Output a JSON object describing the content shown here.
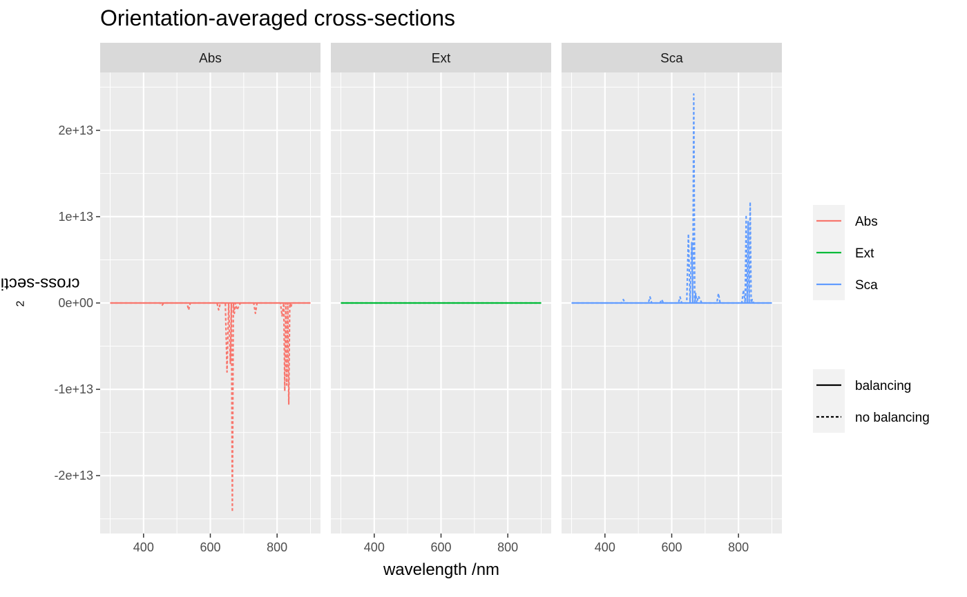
{
  "chart_data": {
    "type": "line",
    "title": "Orientation-averaged cross-sections",
    "xlabel": "wavelength /nm",
    "ylabel": "cross-section /nm",
    "ylabel_superscript": "2",
    "xlim": [
      270,
      930
    ],
    "ylim": [
      -26700000000000.0,
      26700000000000.0
    ],
    "x_ticks": [
      400,
      600,
      800
    ],
    "x_tick_labels": [
      "400",
      "600",
      "800"
    ],
    "y_ticks": [
      -20000000000000.0,
      -10000000000000.0,
      0,
      10000000000000.0,
      20000000000000.0
    ],
    "y_tick_labels": [
      "-2e+13",
      "-1e+13",
      "0e+00",
      "1e+13",
      "2e+13"
    ],
    "grid": true,
    "facets": [
      "Abs",
      "Ext",
      "Sca"
    ],
    "legend_position": "right",
    "legend_colour": {
      "entries": [
        {
          "label": "Abs",
          "color": "#F8766D"
        },
        {
          "label": "Ext",
          "color": "#00BA38"
        },
        {
          "label": "Sca",
          "color": "#619CFF"
        }
      ]
    },
    "legend_linetype": {
      "entries": [
        {
          "label": "balancing",
          "dash": "solid"
        },
        {
          "label": "no balancing",
          "dash": "dashed"
        }
      ]
    },
    "series": [
      {
        "facet": "Abs",
        "color": "#F8766D",
        "linetype": "balancing",
        "x": [
          300,
          900
        ],
        "y": [
          0,
          0
        ]
      },
      {
        "facet": "Abs",
        "color": "#F8766D",
        "linetype": "no balancing",
        "x": [
          300,
          450,
          455,
          460,
          530,
          535,
          540,
          620,
          625,
          630,
          645,
          650,
          655,
          660,
          663,
          666,
          669,
          672,
          675,
          680,
          690,
          700,
          730,
          735,
          740,
          810,
          815,
          820,
          823,
          826,
          829,
          832,
          835,
          838,
          841,
          845,
          900
        ],
        "y": [
          0,
          0,
          -300000000000.0,
          0,
          0,
          -800000000000.0,
          0,
          0,
          -800000000000.0,
          0,
          0,
          -8000000000000.0,
          0,
          -7000000000000.0,
          0,
          -24200000000000.0,
          0,
          -1200000000000.0,
          0,
          -800000000000.0,
          0,
          0,
          0,
          -1200000000000.0,
          0,
          0,
          -1500000000000.0,
          0,
          -10200000000000.0,
          0,
          -9500000000000.0,
          0,
          -11700000000000.0,
          0,
          -500000000000.0,
          0,
          0
        ]
      },
      {
        "facet": "Ext",
        "color": "#00BA38",
        "linetype": "balancing",
        "x": [
          300,
          900
        ],
        "y": [
          0,
          0
        ]
      },
      {
        "facet": "Ext",
        "color": "#00BA38",
        "linetype": "no balancing",
        "x": [
          300,
          900
        ],
        "y": [
          0,
          0
        ]
      },
      {
        "facet": "Sca",
        "color": "#619CFF",
        "linetype": "balancing",
        "x": [
          300,
          900
        ],
        "y": [
          0,
          0
        ]
      },
      {
        "facet": "Sca",
        "color": "#619CFF",
        "linetype": "no balancing",
        "x": [
          300,
          450,
          455,
          460,
          530,
          535,
          540,
          565,
          570,
          575,
          620,
          625,
          630,
          645,
          650,
          655,
          660,
          663,
          666,
          669,
          672,
          675,
          680,
          690,
          700,
          735,
          740,
          745,
          810,
          815,
          820,
          823,
          826,
          829,
          832,
          835,
          838,
          841,
          845,
          900
        ],
        "y": [
          0,
          0,
          400000000000.0,
          0,
          0,
          700000000000.0,
          0,
          0,
          400000000000.0,
          0,
          0,
          700000000000.0,
          0,
          0,
          8000000000000.0,
          0,
          7000000000000.0,
          0,
          24200000000000.0,
          0,
          1100000000000.0,
          0,
          800000000000.0,
          0,
          0,
          0,
          1100000000000.0,
          0,
          0,
          1500000000000.0,
          0,
          10200000000000.0,
          0,
          9500000000000.0,
          0,
          11700000000000.0,
          0,
          400000000000.0,
          0,
          0
        ]
      }
    ]
  }
}
